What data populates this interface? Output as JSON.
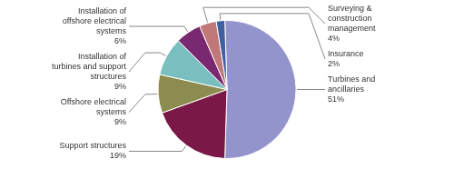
{
  "chart_data": {
    "type": "pie",
    "categories": [
      "Turbines and\nancillaries",
      "Support structures",
      "Offshore electrical\nsystems",
      "Installation of\nturbines and support\nstructures",
      "Installation of\noffshore electrical\nsystems",
      "Surveying &\nconstruction\nmanagement",
      "Insurance"
    ],
    "values": [
      51,
      19,
      9,
      9,
      6,
      4,
      2
    ],
    "value_labels": [
      "51%",
      "19%",
      "9%",
      "9%",
      "6%",
      "4%",
      "2%"
    ],
    "colors": [
      "#9494cc",
      "#7a1848",
      "#8c8c50",
      "#7abfbf",
      "#7a2870",
      "#c07878",
      "#4060a0"
    ],
    "data_labels": true
  }
}
